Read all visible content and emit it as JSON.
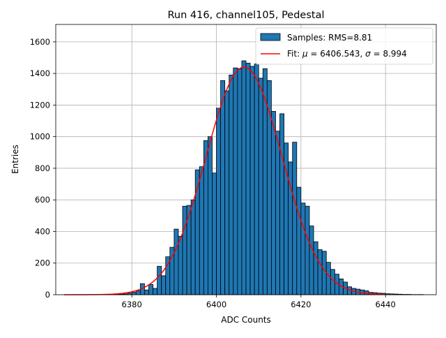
{
  "chart_data": {
    "type": "bar",
    "title": "Run 416, channel105, Pedestal",
    "xlabel": "ADC Counts",
    "ylabel": "Entries",
    "xlim": [
      6362,
      6452
    ],
    "ylim": [
      0,
      1710
    ],
    "xticks": [
      6380,
      6400,
      6420,
      6440
    ],
    "yticks": [
      0,
      200,
      400,
      600,
      800,
      1000,
      1200,
      1400,
      1600
    ],
    "grid": true,
    "legend": {
      "placement": "top-right",
      "hist_label": "Samples: RMS=8.81",
      "fit_label_prefix": "Fit: ",
      "mu_symbol": "μ",
      "equals_mu": " = 6406.543, ",
      "sigma_symbol": "σ",
      "equals_sigma": " = 8.994"
    },
    "histogram": {
      "bin_width": 1,
      "bin_starts": [
        6374,
        6375,
        6376,
        6377,
        6378,
        6379,
        6380,
        6381,
        6382,
        6383,
        6384,
        6385,
        6386,
        6387,
        6388,
        6389,
        6390,
        6391,
        6392,
        6393,
        6394,
        6395,
        6396,
        6397,
        6398,
        6399,
        6400,
        6401,
        6402,
        6403,
        6404,
        6405,
        6406,
        6407,
        6408,
        6409,
        6410,
        6411,
        6412,
        6413,
        6414,
        6415,
        6416,
        6417,
        6418,
        6419,
        6420,
        6421,
        6422,
        6423,
        6424,
        6425,
        6426,
        6427,
        6428,
        6429,
        6430,
        6431,
        6432,
        6433,
        6434,
        6435,
        6436,
        6437,
        6438,
        6439,
        6440,
        6441,
        6442,
        6443,
        6444,
        6445,
        6446,
        6447,
        6448
      ],
      "counts": [
        1,
        2,
        2,
        3,
        5,
        10,
        15,
        25,
        70,
        30,
        65,
        40,
        180,
        120,
        240,
        300,
        415,
        370,
        560,
        565,
        600,
        790,
        810,
        975,
        1000,
        770,
        1180,
        1355,
        1290,
        1390,
        1435,
        1430,
        1480,
        1465,
        1445,
        1460,
        1370,
        1430,
        1355,
        1160,
        1035,
        1145,
        960,
        840,
        965,
        680,
        580,
        560,
        435,
        335,
        285,
        275,
        205,
        160,
        130,
        100,
        80,
        50,
        40,
        35,
        30,
        25,
        15,
        13,
        10,
        9,
        6,
        5,
        4,
        3,
        2,
        2,
        1,
        1,
        1
      ],
      "bar_color": "#1f77b4",
      "edge_color": "#000000"
    },
    "fit": {
      "mu": 6406.543,
      "sigma": 8.994,
      "amplitude": 1440,
      "x_range": [
        6364,
        6440
      ],
      "color": "#ff0000"
    }
  }
}
